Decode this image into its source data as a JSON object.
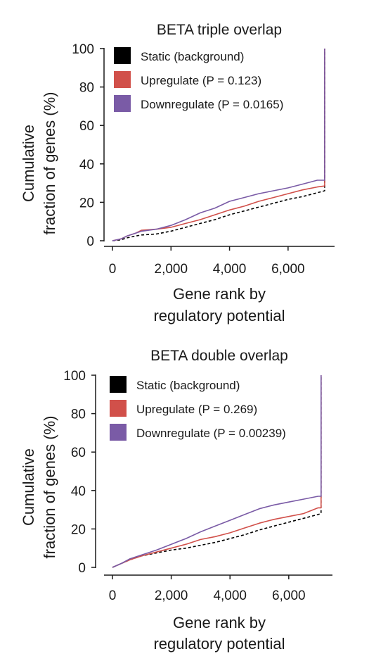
{
  "chart_data": [
    {
      "type": "line",
      "title": "BETA triple overlap",
      "xlabel": [
        "Gene rank by",
        "regulatory potential"
      ],
      "ylabel": [
        "Cumulative",
        "fraction of genes (%)"
      ],
      "xlim": [
        0,
        7300
      ],
      "ylim": [
        0,
        100
      ],
      "xticks": [
        0,
        2000,
        4000,
        6000
      ],
      "xtick_labels": [
        "0",
        "2,000",
        "4,000",
        "6,000"
      ],
      "yticks": [
        0,
        20,
        40,
        60,
        80,
        100
      ],
      "ytick_labels": [
        "0",
        "20",
        "40",
        "60",
        "80",
        "100"
      ],
      "grid": false,
      "legend_position": "top-left",
      "series": [
        {
          "name": "Static (background)",
          "color": "#000000",
          "style": "dashed",
          "x": [
            0,
            300,
            500,
            800,
            1000,
            1500,
            2000,
            2500,
            3000,
            3500,
            4000,
            4500,
            5000,
            5500,
            6000,
            6500,
            7000,
            7250,
            7250
          ],
          "y": [
            0,
            0.5,
            1.5,
            2.5,
            3,
            3.5,
            5,
            7,
            9,
            11,
            13.5,
            15.5,
            17.5,
            19.5,
            21.5,
            23,
            25,
            26,
            100
          ]
        },
        {
          "name": "Upregulate",
          "stat_label": "(P = 0.123)",
          "color": "#d1504a",
          "style": "solid",
          "x": [
            0,
            300,
            500,
            800,
            1000,
            1500,
            2000,
            2500,
            3000,
            3500,
            4000,
            4500,
            5000,
            5500,
            6000,
            6500,
            7000,
            7250,
            7250
          ],
          "y": [
            0,
            1,
            2.5,
            4,
            5.5,
            6,
            7,
            9,
            11,
            13.5,
            16,
            18,
            20.5,
            22.5,
            24.5,
            26.5,
            28,
            28.5,
            100
          ]
        },
        {
          "name": "Downregulate",
          "stat_label": "(P = 0.0165)",
          "color": "#7a5ba6",
          "style": "solid",
          "x": [
            0,
            300,
            500,
            800,
            1000,
            1500,
            2000,
            2500,
            3000,
            3500,
            4000,
            4500,
            5000,
            5500,
            6000,
            6500,
            7000,
            7250,
            7250
          ],
          "y": [
            0,
            1,
            2.5,
            4,
            5,
            6,
            8,
            11,
            14.5,
            17,
            20.5,
            22.5,
            24.5,
            26,
            27.5,
            29.5,
            31.5,
            31.5,
            100
          ]
        }
      ]
    },
    {
      "type": "line",
      "title": "BETA double overlap",
      "xlabel": [
        "Gene rank by",
        "regulatory potential"
      ],
      "ylabel": [
        "Cumulative",
        "fraction of genes (%)"
      ],
      "xlim": [
        0,
        7200
      ],
      "ylim": [
        0,
        100
      ],
      "xticks": [
        0,
        2000,
        4000,
        6000
      ],
      "xtick_labels": [
        "0",
        "2,000",
        "4,000",
        "6,000"
      ],
      "yticks": [
        0,
        20,
        40,
        60,
        80,
        100
      ],
      "ytick_labels": [
        "0",
        "20",
        "40",
        "60",
        "80",
        "100"
      ],
      "grid": false,
      "legend_position": "top-left",
      "series": [
        {
          "name": "Static (background)",
          "color": "#000000",
          "style": "dashed",
          "x": [
            0,
            300,
            600,
            1000,
            1500,
            2000,
            2500,
            3000,
            3500,
            4000,
            4500,
            5000,
            5500,
            6000,
            6500,
            7000,
            7100,
            7100
          ],
          "y": [
            0,
            2,
            4,
            6,
            7.5,
            9,
            10,
            11.5,
            13,
            15,
            17,
            19.5,
            21.5,
            23.5,
            25.5,
            27.5,
            28,
            100
          ]
        },
        {
          "name": "Upregulate",
          "stat_label": "(P = 0.269)",
          "color": "#d1504a",
          "style": "solid",
          "x": [
            0,
            300,
            600,
            1000,
            1500,
            2000,
            2500,
            3000,
            3500,
            4000,
            4500,
            5000,
            5500,
            6000,
            6500,
            7000,
            7100,
            7100
          ],
          "y": [
            0,
            2,
            4,
            6,
            8,
            10,
            12,
            14.5,
            16,
            18,
            20.5,
            23,
            25,
            26.5,
            28,
            31,
            31,
            100
          ]
        },
        {
          "name": "Downregulate",
          "stat_label": "(P = 0.00239)",
          "color": "#7a5ba6",
          "style": "solid",
          "x": [
            0,
            300,
            600,
            1000,
            1500,
            2000,
            2500,
            3000,
            3500,
            4000,
            4500,
            5000,
            5500,
            6000,
            6500,
            7000,
            7100,
            7100
          ],
          "y": [
            0,
            2,
            4.5,
            6.5,
            9,
            12,
            15,
            18.5,
            21.5,
            24.5,
            27.5,
            30.5,
            32.5,
            34,
            35.5,
            37,
            37,
            100
          ]
        }
      ]
    }
  ]
}
